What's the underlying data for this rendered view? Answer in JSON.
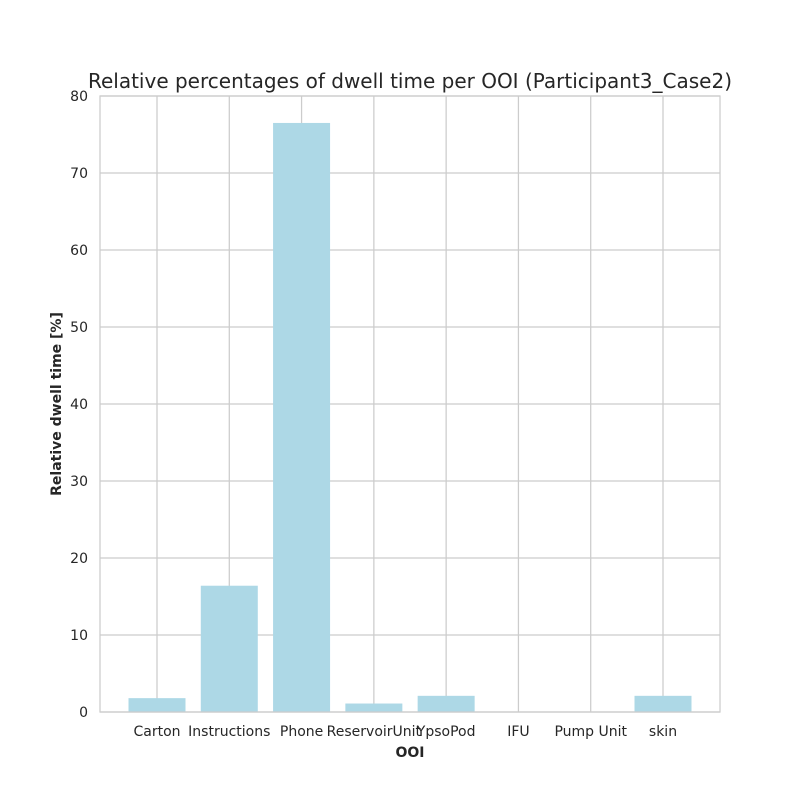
{
  "chart_data": {
    "type": "bar",
    "title": "Relative percentages of dwell time per OOI (Participant3_Case2)",
    "xlabel": "OOI",
    "ylabel": "Relative dwell time [%]",
    "categories": [
      "Carton",
      "Instructions",
      "Phone",
      "ReservoirUnit",
      "YpsoPod",
      "IFU",
      "Pump Unit",
      "skin"
    ],
    "values": [
      1.8,
      16.4,
      76.5,
      1.1,
      2.1,
      0,
      0,
      2.1
    ],
    "ylim": [
      0,
      80
    ],
    "yticks": [
      0,
      10,
      20,
      30,
      40,
      50,
      60,
      70,
      80
    ],
    "grid": true,
    "bar_color": "#add8e6",
    "grid_color": "#cccccc",
    "background_color": "#ffffff"
  }
}
